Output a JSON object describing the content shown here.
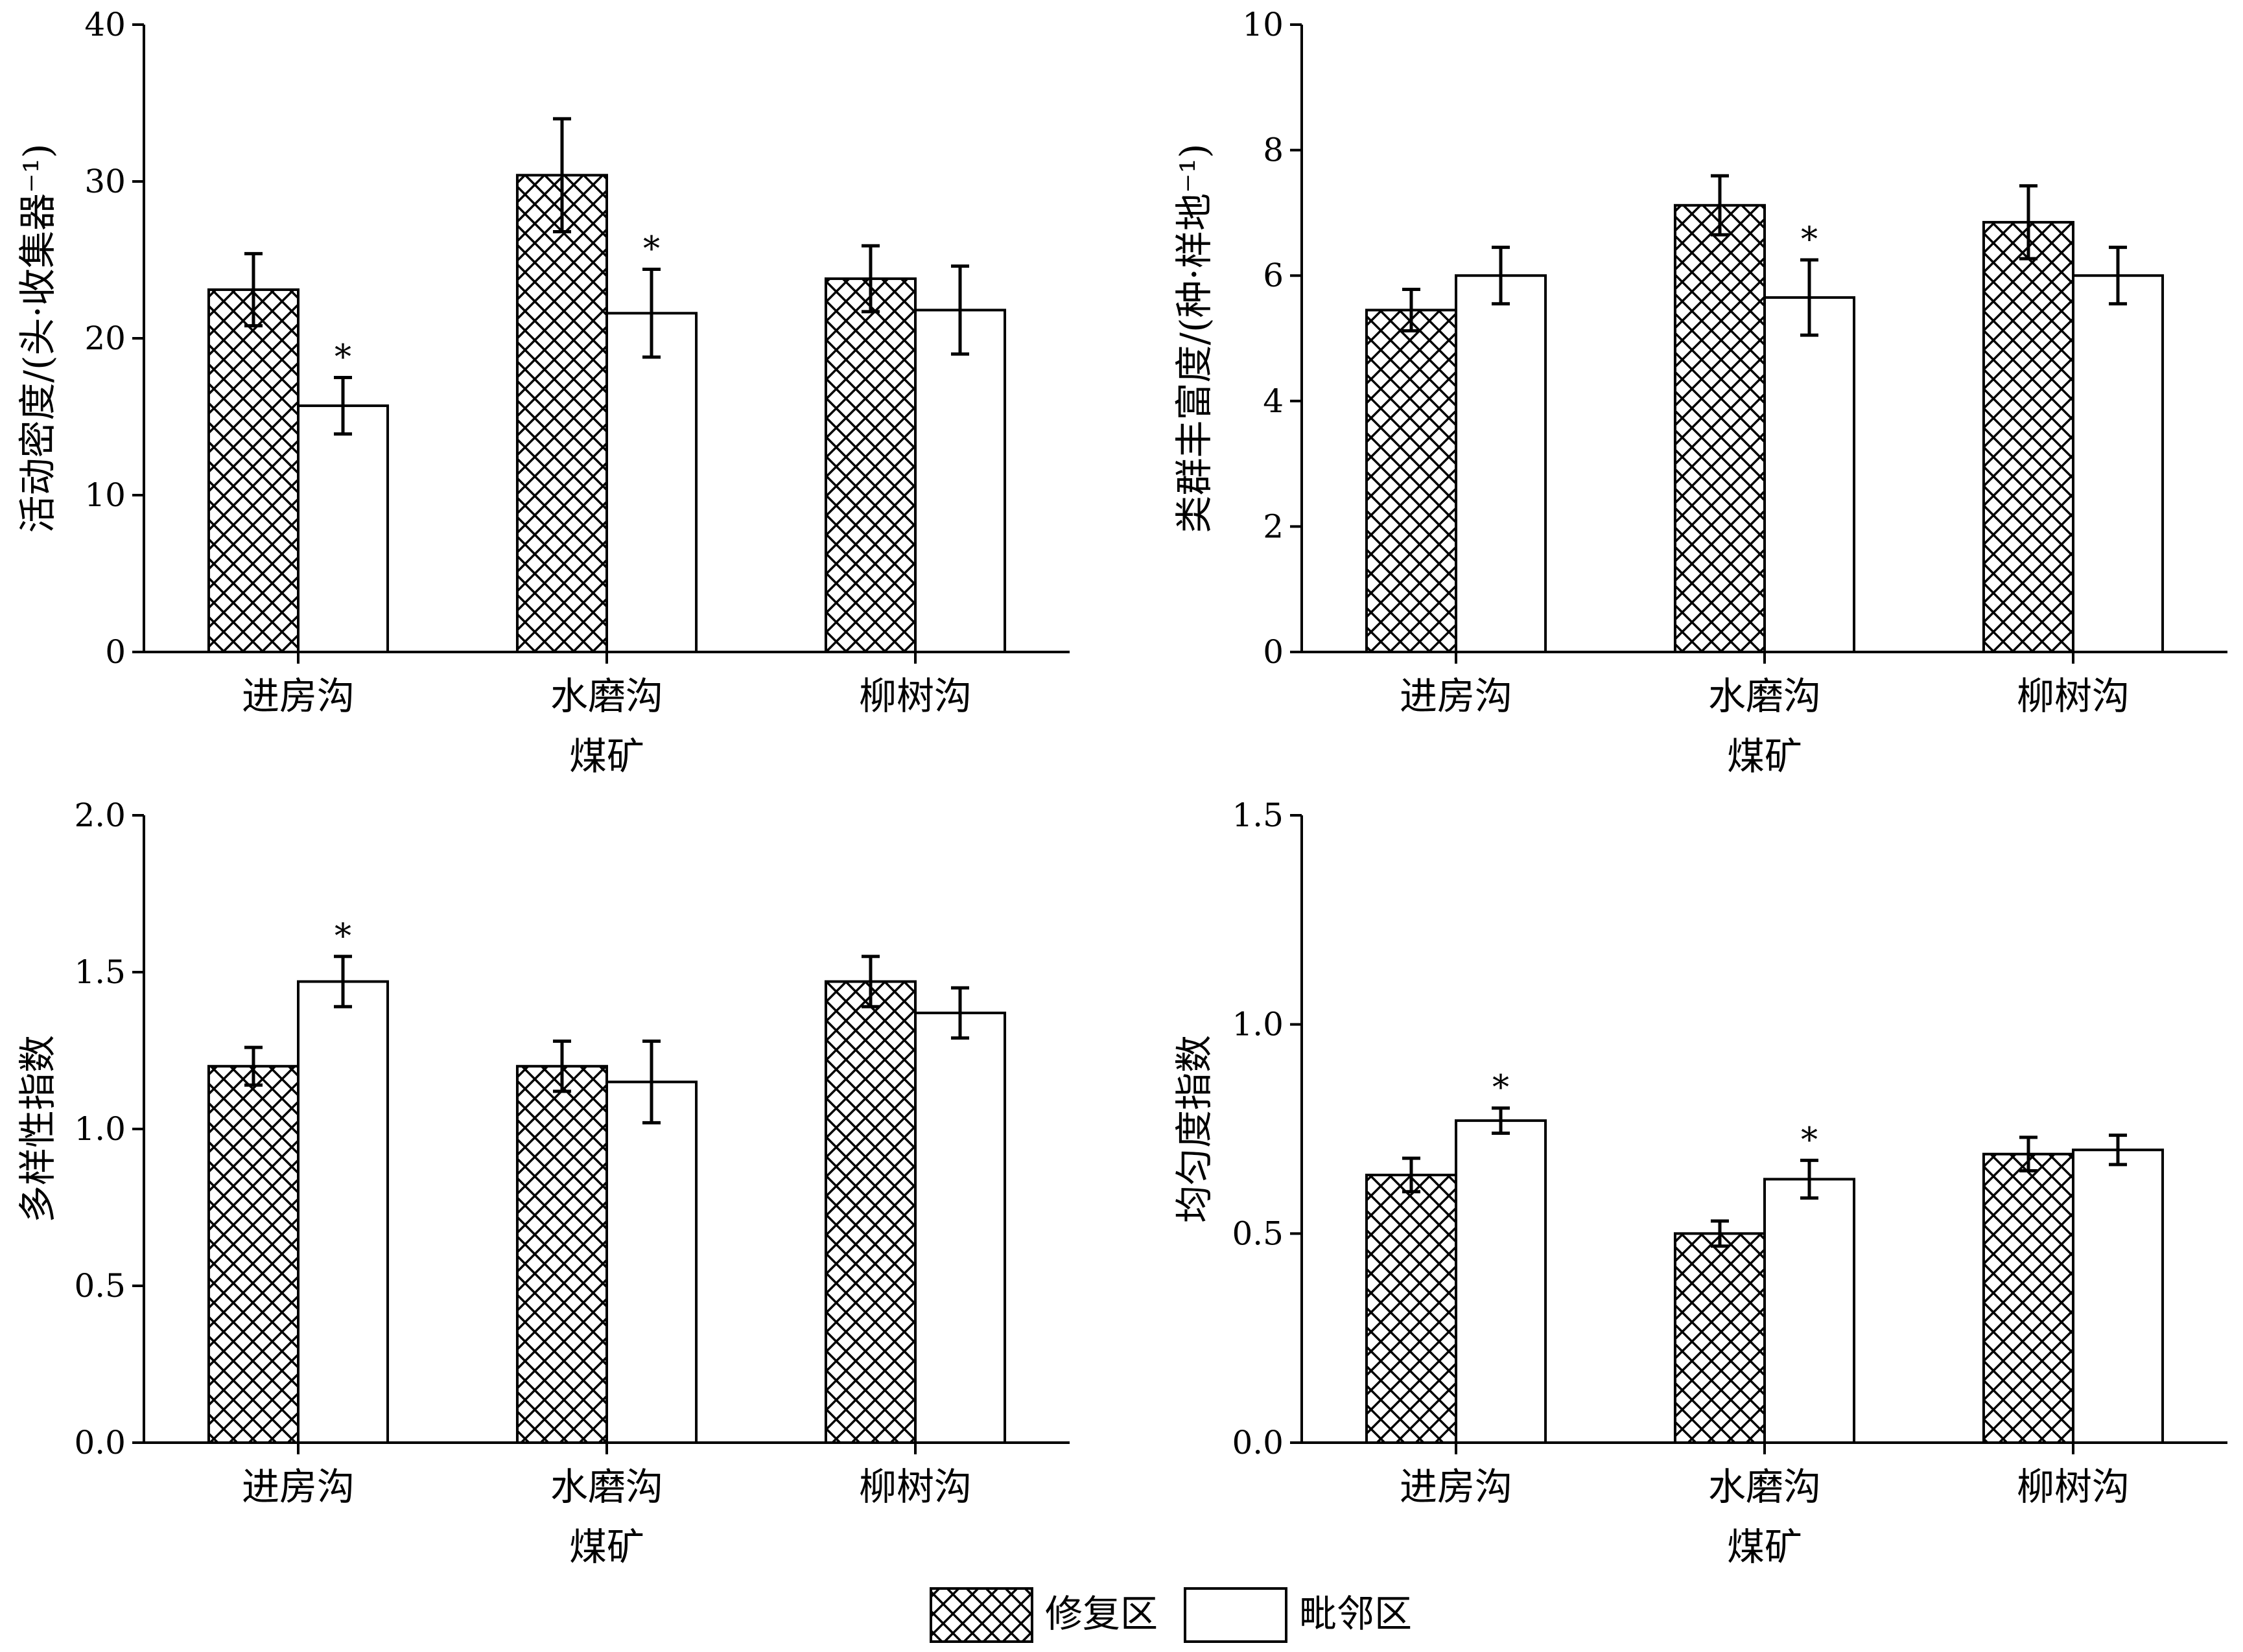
{
  "chart_data": [
    {
      "type": "bar",
      "categories": [
        "进房沟",
        "水磨沟",
        "柳树沟"
      ],
      "xlabel": "煤矿",
      "ylabel": "活动密度/(头·收集器⁻¹)",
      "ylim": [
        0,
        40
      ],
      "yticks": [
        "0",
        "10",
        "20",
        "30",
        "40"
      ],
      "series": [
        {
          "name": "修复区",
          "pattern": "crosshatch",
          "values": [
            23.1,
            30.4,
            23.8
          ],
          "errors": [
            2.3,
            3.6,
            2.1
          ]
        },
        {
          "name": "毗邻区",
          "pattern": "white",
          "values": [
            15.7,
            21.6,
            21.8
          ],
          "errors": [
            1.8,
            2.8,
            2.8
          ]
        }
      ],
      "significance": [
        {
          "category": "进房沟",
          "series": "毗邻区",
          "mark": "*"
        },
        {
          "category": "水磨沟",
          "series": "毗邻区",
          "mark": "*"
        }
      ]
    },
    {
      "type": "bar",
      "categories": [
        "进房沟",
        "水磨沟",
        "柳树沟"
      ],
      "xlabel": "煤矿",
      "ylabel": "类群丰富度/(种·样地⁻¹)",
      "ylim": [
        0,
        10
      ],
      "yticks": [
        "0",
        "2",
        "4",
        "6",
        "8",
        "10"
      ],
      "series": [
        {
          "name": "修复区",
          "pattern": "crosshatch",
          "values": [
            5.45,
            7.12,
            6.85
          ],
          "errors": [
            0.33,
            0.47,
            0.58
          ]
        },
        {
          "name": "毗邻区",
          "pattern": "white",
          "values": [
            6.0,
            5.65,
            6.0
          ],
          "errors": [
            0.45,
            0.6,
            0.45
          ]
        }
      ],
      "significance": [
        {
          "category": "水磨沟",
          "series": "毗邻区",
          "mark": "*"
        }
      ]
    },
    {
      "type": "bar",
      "categories": [
        "进房沟",
        "水磨沟",
        "柳树沟"
      ],
      "xlabel": "煤矿",
      "ylabel": "多样性指数",
      "ylim": [
        0,
        2
      ],
      "yticks": [
        "0.0",
        "0.5",
        "1.0",
        "1.5",
        "2.0"
      ],
      "series": [
        {
          "name": "修复区",
          "pattern": "crosshatch",
          "values": [
            1.2,
            1.2,
            1.47
          ],
          "errors": [
            0.06,
            0.08,
            0.08
          ]
        },
        {
          "name": "毗邻区",
          "pattern": "white",
          "values": [
            1.47,
            1.15,
            1.37
          ],
          "errors": [
            0.08,
            0.13,
            0.08
          ]
        }
      ],
      "significance": [
        {
          "category": "进房沟",
          "series": "毗邻区",
          "mark": "*"
        }
      ]
    },
    {
      "type": "bar",
      "categories": [
        "进房沟",
        "水磨沟",
        "柳树沟"
      ],
      "xlabel": "煤矿",
      "ylabel": "均匀度指数",
      "ylim": [
        0,
        1.5
      ],
      "yticks": [
        "0.0",
        "0.5",
        "1.0",
        "1.5"
      ],
      "series": [
        {
          "name": "修复区",
          "pattern": "crosshatch",
          "values": [
            0.64,
            0.5,
            0.69
          ],
          "errors": [
            0.04,
            0.03,
            0.04
          ]
        },
        {
          "name": "毗邻区",
          "pattern": "white",
          "values": [
            0.77,
            0.63,
            0.7
          ],
          "errors": [
            0.03,
            0.045,
            0.035
          ]
        }
      ],
      "significance": [
        {
          "category": "进房沟",
          "series": "毗邻区",
          "mark": "*"
        },
        {
          "category": "水磨沟",
          "series": "毗邻区",
          "mark": "*"
        }
      ]
    }
  ],
  "legend": {
    "placement": "bottom-center",
    "items": [
      {
        "label": "修复区",
        "pattern": "crosshatch"
      },
      {
        "label": "毗邻区",
        "pattern": "white"
      }
    ]
  }
}
